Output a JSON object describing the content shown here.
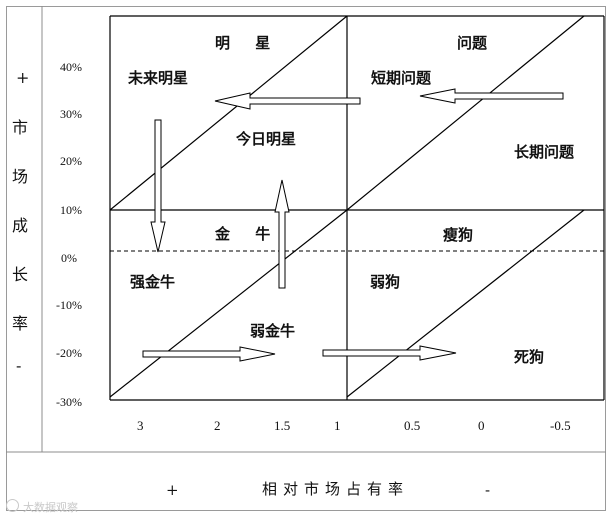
{
  "y_axis": {
    "plus_sign": "+",
    "title_chars": [
      "市",
      "场",
      "成",
      "长",
      "率"
    ],
    "minus_sign": "-",
    "ticks": [
      "40%",
      "30%",
      "20%",
      "10%",
      "0%",
      "-10%",
      "-20%",
      "-30%"
    ]
  },
  "x_axis": {
    "ticks": [
      "3",
      "2",
      "1.5",
      "1",
      "0.5",
      "0",
      "-0.5"
    ],
    "plus_sign": "+",
    "title": "相对市场占有率",
    "minus_sign": "-"
  },
  "quadrants": {
    "top_left": "明 星",
    "top_right": "问题",
    "bottom_left": "金 牛",
    "bottom_right": "瘦狗"
  },
  "labels": {
    "future_star": "未来明星",
    "today_star": "今日明星",
    "short_problem": "短期问题",
    "long_problem": "长期问题",
    "strong_cow": "强金牛",
    "weak_cow": "弱金牛",
    "weak_dog": "弱狗",
    "dead_dog": "死狗"
  },
  "watermark": "大数据观察"
}
